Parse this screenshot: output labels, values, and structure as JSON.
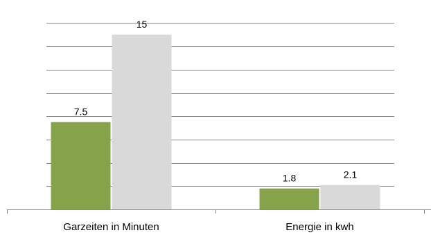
{
  "chart_data": {
    "type": "bar",
    "categories": [
      "Garzeiten in Minuten",
      "Energie in kwh"
    ],
    "series": [
      {
        "values": [
          7.5,
          1.8
        ],
        "color": "#86a24a"
      },
      {
        "values": [
          15,
          2.1
        ],
        "color": "#d9d9d9"
      }
    ],
    "data_labels": [
      [
        "7.5",
        "1.8"
      ],
      [
        "15",
        "2.1"
      ]
    ],
    "ylim": [
      0,
      16
    ],
    "grid": true,
    "legend": "none",
    "title": "",
    "xlabel": "",
    "ylabel": ""
  }
}
